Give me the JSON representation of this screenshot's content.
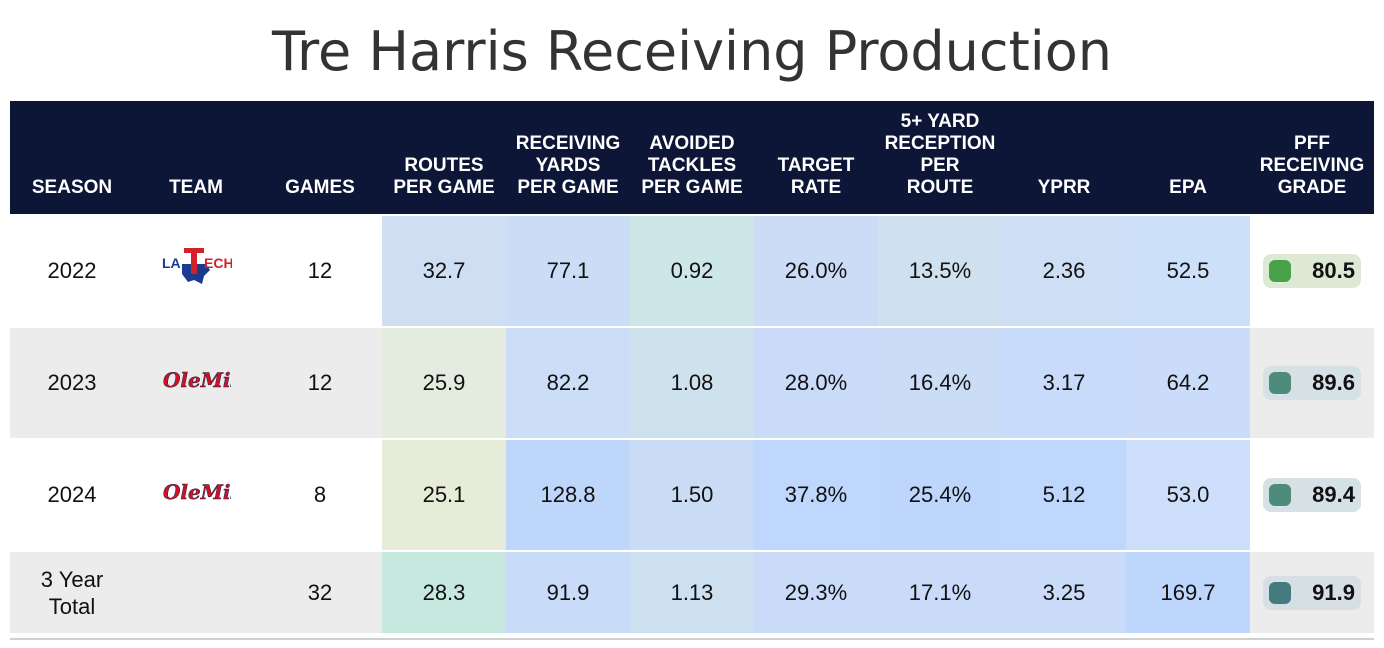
{
  "title": "Tre Harris Receiving Production",
  "headers": {
    "season": "SEASON",
    "team": "TEAM",
    "games": "GAMES",
    "routes": [
      "ROUTES",
      "PER GAME"
    ],
    "yards": [
      "RECEIVING",
      "YARDS",
      "PER GAME"
    ],
    "avoided": [
      "AVOIDED",
      "TACKLES",
      "PER GAME"
    ],
    "target": [
      "TARGET",
      "RATE"
    ],
    "five_plus": [
      "5+ YARD",
      "RECEPTION",
      "PER",
      "ROUTE"
    ],
    "yprr": "YPRR",
    "epa": "EPA",
    "grade": [
      "PFF",
      "RECEIVING",
      "GRADE"
    ]
  },
  "rows": [
    {
      "season": "2022",
      "team": "Louisiana Tech",
      "logo": "latech-logo",
      "games": "12",
      "routes": "32.7",
      "yards": "77.1",
      "avoided": "0.92",
      "target": "26.0%",
      "five_plus": "13.5%",
      "yprr": "2.36",
      "epa": "52.5",
      "grade": "80.5",
      "colors": {
        "routes": "#cfdef3",
        "yards": "#cbdcf6",
        "avoided": "#cde6e7",
        "target": "#cddcf6",
        "five_plus": "#cfe0ee",
        "yprr": "#cedef4",
        "epa": "#cde0fa",
        "grade_bg": "#dde9d5",
        "grade_dot": "#48a24a"
      }
    },
    {
      "season": "2023",
      "team": "Ole Miss",
      "logo": "olemiss-logo",
      "games": "12",
      "routes": "25.9",
      "yards": "82.2",
      "avoided": "1.08",
      "target": "28.0%",
      "five_plus": "16.4%",
      "yprr": "3.17",
      "epa": "64.2",
      "grade": "89.6",
      "colors": {
        "routes": "#e3ecde",
        "yards": "#ccddf8",
        "avoided": "#cee2ee",
        "target": "#c9dbf8",
        "five_plus": "#cadcf6",
        "yprr": "#c9dbfa",
        "epa": "#cadcfa",
        "grade_bg": "#d6e1e6",
        "grade_dot": "#4c8c78"
      }
    },
    {
      "season": "2024",
      "team": "Ole Miss",
      "logo": "olemiss-logo",
      "games": "8",
      "routes": "25.1",
      "yards": "128.8",
      "avoided": "1.50",
      "target": "37.8%",
      "five_plus": "25.4%",
      "yprr": "5.12",
      "epa": "53.0",
      "grade": "89.4",
      "colors": {
        "routes": "#e6ecd8",
        "yards": "#bfd6fb",
        "avoided": "#cadcf5",
        "target": "#bfd7fc",
        "five_plus": "#bfd6fc",
        "yprr": "#bfd6fd",
        "epa": "#ccdefa",
        "grade_bg": "#d6e1e6",
        "grade_dot": "#4c8c78"
      }
    },
    {
      "season_lines": [
        "3 Year",
        "Total"
      ],
      "team": "",
      "logo": "",
      "games": "32",
      "routes": "28.3",
      "yards": "91.9",
      "avoided": "1.13",
      "target": "29.3%",
      "five_plus": "17.1%",
      "yprr": "3.25",
      "epa": "169.7",
      "grade": "91.9",
      "colors": {
        "routes": "#c6e8df",
        "yards": "#c8dbf8",
        "avoided": "#cde0f0",
        "target": "#c9dbf8",
        "five_plus": "#c9dbf8",
        "yprr": "#c9dbf8",
        "epa": "#bfd6fc",
        "grade_bg": "#d6e0e4",
        "grade_dot": "#457a80"
      }
    }
  ]
}
